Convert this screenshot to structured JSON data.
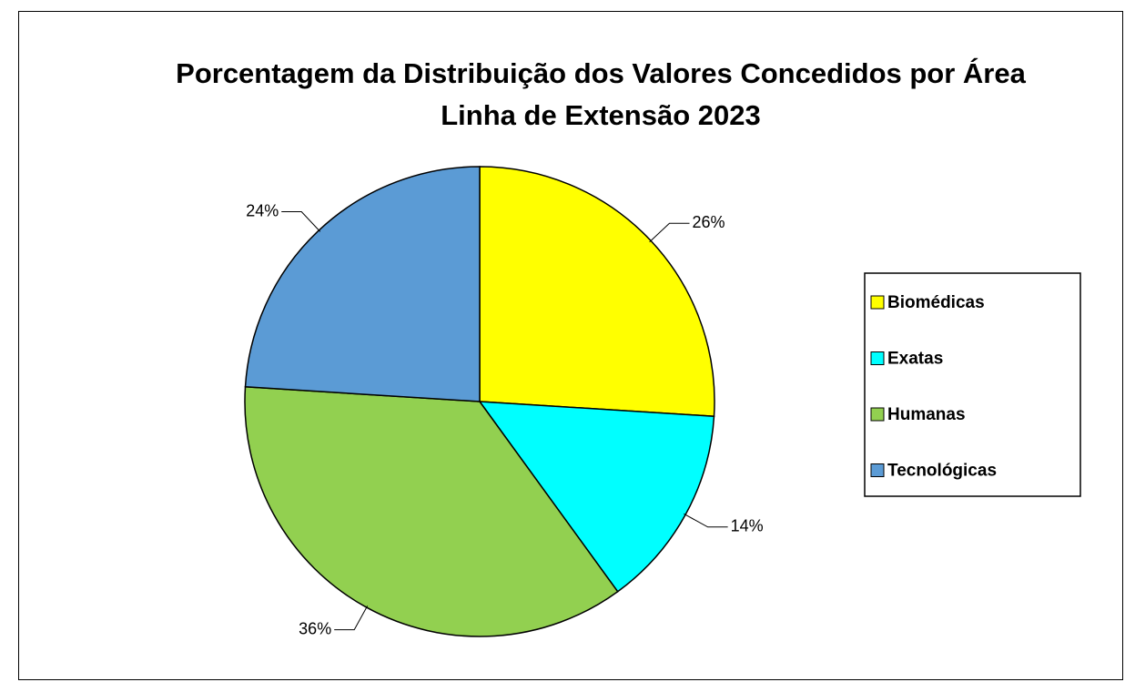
{
  "chart_data": {
    "type": "pie",
    "title": "Porcentagem da Distribuição dos Valores Concedidos por Área Linha de Extensão 2023",
    "categories": [
      "Biomédicas",
      "Exatas",
      "Humanas",
      "Tecnológicas"
    ],
    "values": [
      26,
      14,
      36,
      24
    ],
    "value_labels": [
      "26%",
      "14%",
      "36%",
      "24%"
    ],
    "colors": [
      "#ffff00",
      "#00ffff",
      "#92d050",
      "#5b9bd5"
    ],
    "legend": "right"
  }
}
